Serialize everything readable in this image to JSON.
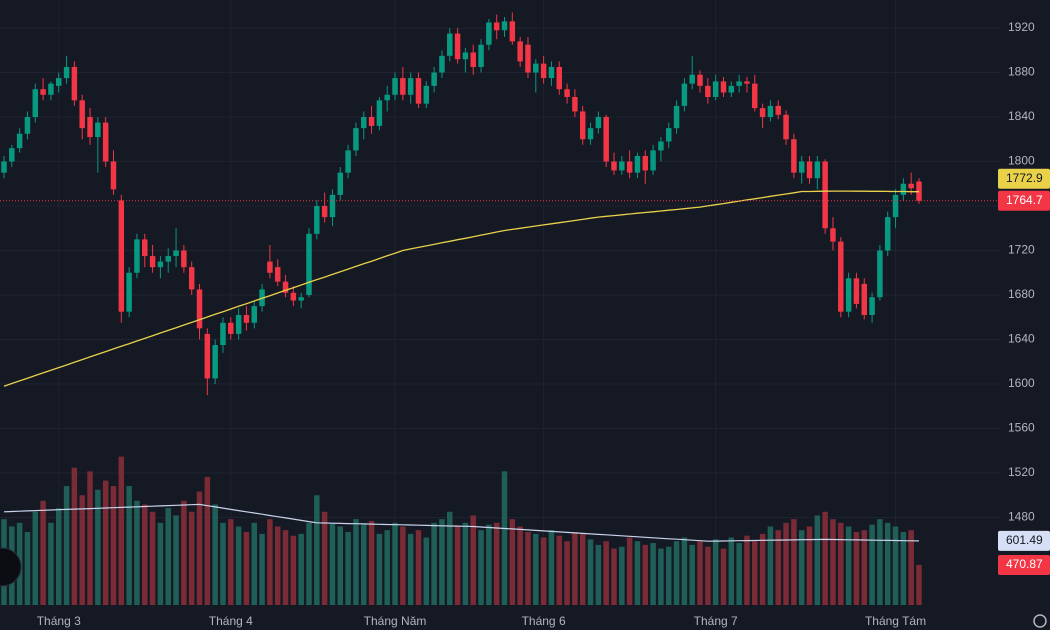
{
  "chart_data": {
    "type": "candlestick",
    "up_color": "#089981",
    "down_color": "#f23645",
    "volume_up_color": "#1f5f58",
    "volume_down_color": "#7a2b36",
    "ma_color": "#e9d14a",
    "volume_ma_color": "#c9d3ea",
    "grid": true,
    "ylim": [
      1401.3,
      1945.2
    ],
    "yticks": [
      1920,
      1880,
      1840,
      1800,
      1760,
      1720,
      1680,
      1640,
      1600,
      1560,
      1520,
      1480
    ],
    "volume_ylim": [
      253,
      3544
    ],
    "x_labels": [
      {
        "label": "Tháng 3",
        "index": 7
      },
      {
        "label": "Tháng 4",
        "index": 29
      },
      {
        "label": "Tháng Năm",
        "index": 50
      },
      {
        "label": "Tháng 6",
        "index": 69
      },
      {
        "label": "Tháng 7",
        "index": 91
      },
      {
        "label": "Tháng Tám",
        "index": 114
      }
    ],
    "open": [
      1790,
      1800,
      1812,
      1825,
      1840,
      1865,
      1860,
      1868,
      1875,
      1885,
      1855,
      1840,
      1822,
      1835,
      1800,
      1765,
      1665,
      1700,
      1730,
      1715,
      1705,
      1710,
      1715,
      1720,
      1705,
      1685,
      1645,
      1605,
      1635,
      1655,
      1645,
      1662,
      1655,
      1670,
      1710,
      1705,
      1692,
      1682,
      1675,
      1680,
      1735,
      1760,
      1750,
      1770,
      1790,
      1810,
      1830,
      1840,
      1832,
      1855,
      1860,
      1875,
      1860,
      1875,
      1852,
      1868,
      1880,
      1895,
      1915,
      1892,
      1898,
      1885,
      1905,
      1925,
      1918,
      1926,
      1908,
      1905,
      1880,
      1888,
      1875,
      1885,
      1865,
      1858,
      1845,
      1820,
      1830,
      1840,
      1800,
      1792,
      1800,
      1790,
      1805,
      1792,
      1810,
      1818,
      1830,
      1850,
      1870,
      1878,
      1868,
      1858,
      1872,
      1862,
      1868,
      1872,
      1870,
      1848,
      1840,
      1850,
      1842,
      1820,
      1790,
      1800,
      1785,
      1800,
      1740,
      1728,
      1665,
      1695,
      1690,
      1662,
      1678,
      1720,
      1750,
      1770,
      1780,
      1782
    ],
    "high": [
      1805,
      1815,
      1830,
      1845,
      1870,
      1875,
      1872,
      1880,
      1895,
      1890,
      1860,
      1848,
      1840,
      1840,
      1810,
      1770,
      1705,
      1735,
      1735,
      1725,
      1715,
      1722,
      1740,
      1725,
      1710,
      1690,
      1650,
      1640,
      1660,
      1660,
      1668,
      1670,
      1675,
      1690,
      1725,
      1712,
      1698,
      1688,
      1682,
      1740,
      1765,
      1772,
      1775,
      1795,
      1815,
      1835,
      1845,
      1850,
      1858,
      1868,
      1880,
      1885,
      1880,
      1880,
      1872,
      1885,
      1900,
      1920,
      1920,
      1902,
      1905,
      1910,
      1928,
      1932,
      1930,
      1934,
      1912,
      1912,
      1892,
      1895,
      1890,
      1890,
      1870,
      1865,
      1850,
      1835,
      1845,
      1842,
      1808,
      1805,
      1810,
      1808,
      1810,
      1815,
      1822,
      1835,
      1855,
      1875,
      1895,
      1882,
      1875,
      1878,
      1876,
      1872,
      1878,
      1876,
      1878,
      1852,
      1855,
      1855,
      1846,
      1825,
      1805,
      1805,
      1805,
      1802,
      1750,
      1732,
      1700,
      1700,
      1695,
      1682,
      1725,
      1755,
      1775,
      1785,
      1790,
      1785
    ],
    "low": [
      1785,
      1795,
      1808,
      1820,
      1835,
      1855,
      1855,
      1862,
      1870,
      1850,
      1820,
      1815,
      1790,
      1795,
      1770,
      1655,
      1660,
      1695,
      1705,
      1700,
      1695,
      1700,
      1705,
      1700,
      1680,
      1640,
      1590,
      1600,
      1628,
      1640,
      1640,
      1648,
      1650,
      1665,
      1695,
      1688,
      1678,
      1670,
      1668,
      1678,
      1730,
      1745,
      1742,
      1765,
      1785,
      1805,
      1820,
      1825,
      1828,
      1845,
      1855,
      1855,
      1852,
      1848,
      1848,
      1862,
      1875,
      1890,
      1888,
      1880,
      1878,
      1880,
      1900,
      1910,
      1912,
      1905,
      1885,
      1875,
      1862,
      1870,
      1868,
      1860,
      1852,
      1840,
      1815,
      1815,
      1825,
      1795,
      1788,
      1788,
      1785,
      1785,
      1780,
      1788,
      1800,
      1812,
      1825,
      1845,
      1865,
      1862,
      1852,
      1855,
      1858,
      1858,
      1862,
      1862,
      1845,
      1830,
      1836,
      1838,
      1815,
      1785,
      1780,
      1780,
      1775,
      1735,
      1720,
      1660,
      1660,
      1668,
      1658,
      1655,
      1675,
      1715,
      1740,
      1765,
      1770,
      1762
    ],
    "close": [
      1800,
      1812,
      1825,
      1840,
      1865,
      1860,
      1870,
      1875,
      1885,
      1855,
      1830,
      1822,
      1835,
      1800,
      1775,
      1665,
      1700,
      1730,
      1715,
      1705,
      1710,
      1715,
      1720,
      1705,
      1685,
      1650,
      1605,
      1635,
      1655,
      1645,
      1662,
      1655,
      1670,
      1685,
      1700,
      1692,
      1682,
      1675,
      1678,
      1735,
      1760,
      1750,
      1770,
      1790,
      1810,
      1830,
      1840,
      1832,
      1855,
      1860,
      1875,
      1860,
      1875,
      1852,
      1868,
      1880,
      1895,
      1915,
      1892,
      1898,
      1885,
      1905,
      1925,
      1918,
      1926,
      1908,
      1890,
      1880,
      1888,
      1875,
      1885,
      1865,
      1858,
      1845,
      1820,
      1830,
      1840,
      1800,
      1792,
      1800,
      1790,
      1805,
      1792,
      1810,
      1818,
      1830,
      1850,
      1870,
      1878,
      1868,
      1858,
      1872,
      1862,
      1868,
      1872,
      1870,
      1848,
      1840,
      1850,
      1842,
      1820,
      1790,
      1800,
      1785,
      1800,
      1740,
      1728,
      1665,
      1695,
      1672,
      1662,
      1678,
      1720,
      1750,
      1770,
      1780,
      1776,
      1764.7
    ],
    "ma": [
      1598,
      1600.4,
      1602.8,
      1605.2,
      1607.6,
      1610,
      1612.3,
      1614.7,
      1617.1,
      1619.5,
      1621.9,
      1624.3,
      1626.7,
      1629.1,
      1631.5,
      1633.9,
      1636.2,
      1638.6,
      1641,
      1643.4,
      1645.8,
      1648.2,
      1650.6,
      1653,
      1655.4,
      1657.8,
      1660.2,
      1662.6,
      1665,
      1667.4,
      1669.8,
      1672.2,
      1674.6,
      1677,
      1679.4,
      1681.8,
      1684.2,
      1686.6,
      1689,
      1691.4,
      1693.8,
      1696.1,
      1698.5,
      1700.9,
      1703.3,
      1705.7,
      1708,
      1710.4,
      1712.8,
      1715.2,
      1717.6,
      1720,
      1721.4,
      1722.8,
      1724.1,
      1725.5,
      1726.9,
      1728.3,
      1729.7,
      1731,
      1732.4,
      1733.8,
      1735.2,
      1736.6,
      1738,
      1739,
      1740,
      1741,
      1742,
      1743,
      1744,
      1745,
      1746,
      1747,
      1748,
      1749,
      1750,
      1750.7,
      1751.4,
      1752.1,
      1752.8,
      1753.5,
      1754.2,
      1754.8,
      1755.5,
      1756.2,
      1756.9,
      1757.6,
      1758.3,
      1759,
      1760.1,
      1761.2,
      1762.2,
      1763.3,
      1764.4,
      1765.5,
      1766.5,
      1767.6,
      1768.7,
      1769.8,
      1770.8,
      1771.9,
      1773,
      1773,
      1773.2,
      1773.3,
      1773.4,
      1773.4,
      1773.4,
      1773.3,
      1773.3,
      1773.2,
      1773.2,
      1773.1,
      1773,
      1773,
      1772.9,
      1772.9
    ],
    "volume": [
      720,
      680,
      700,
      650,
      760,
      820,
      700,
      780,
      900,
      1000,
      850,
      980,
      880,
      930,
      900,
      1060,
      900,
      820,
      800,
      760,
      700,
      780,
      740,
      820,
      760,
      870,
      950,
      800,
      700,
      720,
      680,
      650,
      700,
      640,
      720,
      680,
      660,
      630,
      640,
      700,
      850,
      760,
      700,
      680,
      650,
      720,
      690,
      710,
      640,
      660,
      700,
      680,
      640,
      660,
      620,
      700,
      720,
      760,
      680,
      700,
      740,
      660,
      690,
      700,
      980,
      720,
      680,
      650,
      640,
      620,
      660,
      630,
      600,
      650,
      640,
      610,
      580,
      600,
      560,
      570,
      620,
      600,
      580,
      590,
      560,
      570,
      600,
      620,
      580,
      600,
      570,
      610,
      560,
      620,
      590,
      630,
      600,
      640,
      680,
      660,
      700,
      720,
      660,
      680,
      740,
      760,
      720,
      700,
      680,
      650,
      660,
      690,
      720,
      700,
      680,
      650,
      660,
      470.87
    ],
    "volume_ma": [
      760,
      761.6,
      763.2,
      764.8,
      766.4,
      768,
      769.6,
      771.2,
      772.8,
      774.4,
      776,
      777.6,
      779.2,
      780.8,
      782.4,
      784,
      785.6,
      787.2,
      788.8,
      790.4,
      792,
      793.6,
      795.2,
      796.8,
      798.4,
      800,
      793.3,
      786.7,
      780,
      773.3,
      766.7,
      760,
      753.3,
      746.7,
      740,
      733.3,
      726.7,
      720,
      713.3,
      706.7,
      700,
      699,
      698,
      697,
      696,
      695,
      694,
      693,
      692,
      691,
      690,
      689,
      688,
      687,
      686,
      685,
      684,
      683,
      682,
      681,
      680,
      677.3,
      674.7,
      672,
      669.3,
      666.7,
      664,
      661.3,
      658.7,
      656,
      653.3,
      650.7,
      648,
      645.3,
      642.7,
      640,
      637.3,
      634.7,
      632,
      629.3,
      626.7,
      624,
      621.3,
      618.7,
      616,
      613.3,
      610.7,
      608,
      605.3,
      602.7,
      600,
      600.7,
      601.3,
      602,
      602.7,
      603.3,
      604,
      604.7,
      605.3,
      606,
      606.7,
      607.3,
      608,
      608.7,
      609.3,
      610,
      609.3,
      608.6,
      607.9,
      607.2,
      606.5,
      605.7,
      605,
      604.3,
      603.6,
      602.9,
      602.2,
      601.49
    ]
  }
}
